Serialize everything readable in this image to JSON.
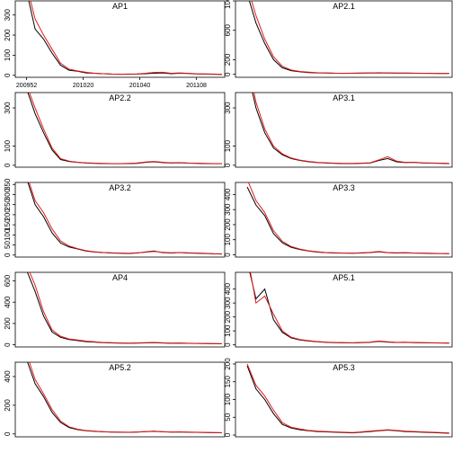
{
  "chart_data": [
    {
      "type": "line",
      "title": "AP1",
      "x": [
        0,
        3,
        6,
        9,
        12,
        15,
        18,
        21,
        24,
        27,
        30,
        33,
        36,
        39,
        42,
        45,
        48,
        51,
        54,
        57,
        60,
        63,
        66,
        69
      ],
      "xlim": [
        -4,
        70
      ],
      "xticks": [
        {
          "value": 0,
          "label": "200952"
        },
        {
          "value": 20,
          "label": "201020"
        },
        {
          "value": 40,
          "label": "201040"
        },
        {
          "value": 60,
          "label": "201108"
        }
      ],
      "ylim": [
        -10,
        370
      ],
      "yticks": [
        0,
        100,
        200,
        300
      ],
      "series": [
        {
          "color": "#000000",
          "values": [
            420,
            230,
            180,
            110,
            50,
            25,
            20,
            12,
            10,
            8,
            6,
            5,
            5,
            6,
            8,
            10,
            12,
            8,
            10,
            9,
            7,
            6,
            5,
            4
          ]
        },
        {
          "color": "#e41a1c",
          "values": [
            450,
            280,
            200,
            130,
            60,
            30,
            22,
            15,
            10,
            8,
            6,
            5,
            6,
            7,
            10,
            14,
            15,
            10,
            12,
            10,
            8,
            7,
            6,
            5
          ]
        }
      ]
    },
    {
      "type": "line",
      "title": "AP2.1",
      "x": [
        0,
        3,
        6,
        9,
        12,
        15,
        18,
        21,
        24,
        27,
        30,
        33,
        36,
        39,
        42,
        45,
        48,
        51,
        54,
        57,
        60,
        63,
        66,
        69
      ],
      "xlim": [
        -4,
        70
      ],
      "ylim": [
        -40,
        1000
      ],
      "yticks": [
        0,
        200,
        600,
        1000
      ],
      "series": [
        {
          "color": "#000000",
          "values": [
            1100,
            700,
            420,
            200,
            90,
            50,
            35,
            25,
            20,
            18,
            15,
            14,
            15,
            16,
            18,
            20,
            18,
            16,
            17,
            15,
            14,
            13,
            12,
            12
          ]
        },
        {
          "color": "#e41a1c",
          "values": [
            1200,
            800,
            480,
            240,
            110,
            60,
            40,
            30,
            22,
            20,
            16,
            15,
            16,
            18,
            20,
            22,
            20,
            18,
            18,
            16,
            15,
            14,
            13,
            13
          ]
        }
      ]
    },
    {
      "type": "line",
      "title": "AP2.2",
      "x": [
        0,
        3,
        6,
        9,
        12,
        15,
        18,
        21,
        24,
        27,
        30,
        33,
        36,
        39,
        42,
        45,
        48,
        51,
        54,
        57,
        60,
        63,
        66,
        69
      ],
      "xlim": [
        -4,
        70
      ],
      "ylim": [
        -10,
        380
      ],
      "yticks": [
        0,
        100,
        300
      ],
      "series": [
        {
          "color": "#000000",
          "values": [
            400,
            270,
            170,
            80,
            30,
            20,
            15,
            12,
            10,
            9,
            8,
            8,
            9,
            10,
            15,
            18,
            14,
            12,
            13,
            11,
            10,
            9,
            8,
            8
          ]
        },
        {
          "color": "#e41a1c",
          "values": [
            420,
            300,
            190,
            90,
            35,
            22,
            16,
            13,
            11,
            10,
            9,
            9,
            10,
            12,
            17,
            20,
            16,
            13,
            14,
            12,
            11,
            10,
            9,
            9
          ]
        }
      ]
    },
    {
      "type": "line",
      "title": "AP3.1",
      "x": [
        0,
        3,
        6,
        9,
        12,
        15,
        18,
        21,
        24,
        27,
        30,
        33,
        36,
        39,
        42,
        45,
        48,
        51,
        54,
        57,
        60,
        63,
        66,
        69
      ],
      "xlim": [
        -4,
        70
      ],
      "ylim": [
        -10,
        380
      ],
      "yticks": [
        0,
        100,
        300
      ],
      "series": [
        {
          "color": "#000000",
          "values": [
            500,
            300,
            170,
            90,
            55,
            35,
            25,
            18,
            14,
            12,
            10,
            9,
            9,
            10,
            12,
            25,
            35,
            18,
            14,
            15,
            12,
            11,
            10,
            9
          ]
        },
        {
          "color": "#e41a1c",
          "values": [
            550,
            330,
            190,
            100,
            60,
            38,
            27,
            20,
            15,
            13,
            11,
            10,
            10,
            11,
            13,
            28,
            45,
            22,
            15,
            16,
            13,
            12,
            11,
            10
          ]
        }
      ]
    },
    {
      "type": "line",
      "title": "AP3.2",
      "x": [
        0,
        3,
        6,
        9,
        12,
        15,
        18,
        21,
        24,
        27,
        30,
        33,
        36,
        39,
        42,
        45,
        48,
        51,
        54,
        57,
        60,
        63,
        66,
        69
      ],
      "xlim": [
        -4,
        70
      ],
      "ylim": [
        -10,
        360
      ],
      "yticks": [
        0,
        50,
        100,
        150,
        200,
        250,
        300,
        350
      ],
      "series": [
        {
          "color": "#000000",
          "values": [
            380,
            250,
            190,
            110,
            60,
            40,
            30,
            20,
            15,
            12,
            10,
            9,
            8,
            10,
            15,
            20,
            12,
            10,
            12,
            10,
            9,
            8,
            6,
            5
          ]
        },
        {
          "color": "#e41a1c",
          "values": [
            400,
            270,
            210,
            130,
            70,
            45,
            32,
            22,
            16,
            13,
            11,
            10,
            9,
            11,
            14,
            18,
            14,
            11,
            13,
            11,
            10,
            9,
            7,
            6
          ]
        }
      ]
    },
    {
      "type": "line",
      "title": "AP3.3",
      "x": [
        0,
        3,
        6,
        9,
        12,
        15,
        18,
        21,
        24,
        27,
        30,
        33,
        36,
        39,
        42,
        45,
        48,
        51,
        54,
        57,
        60,
        63,
        66,
        69
      ],
      "xlim": [
        -4,
        70
      ],
      "ylim": [
        -15,
        480
      ],
      "yticks": [
        0,
        100,
        200,
        300,
        400
      ],
      "series": [
        {
          "color": "#000000",
          "values": [
            450,
            330,
            260,
            140,
            80,
            50,
            35,
            25,
            18,
            14,
            12,
            11,
            10,
            12,
            15,
            20,
            14,
            12,
            13,
            11,
            10,
            9,
            8,
            7
          ]
        },
        {
          "color": "#e41a1c",
          "values": [
            500,
            360,
            280,
            160,
            90,
            55,
            38,
            27,
            20,
            15,
            13,
            12,
            11,
            13,
            16,
            22,
            15,
            13,
            14,
            12,
            11,
            10,
            9,
            8
          ]
        }
      ]
    },
    {
      "type": "line",
      "title": "AP4",
      "x": [
        0,
        3,
        6,
        9,
        12,
        15,
        18,
        21,
        24,
        27,
        30,
        33,
        36,
        39,
        42,
        45,
        48,
        51,
        54,
        57,
        60,
        63,
        66,
        69
      ],
      "xlim": [
        -4,
        70
      ],
      "ylim": [
        -20,
        680
      ],
      "yticks": [
        0,
        200,
        400,
        600
      ],
      "series": [
        {
          "color": "#000000",
          "values": [
            700,
            500,
            270,
            120,
            70,
            50,
            40,
            30,
            25,
            20,
            18,
            16,
            15,
            16,
            18,
            20,
            17,
            15,
            16,
            14,
            13,
            12,
            11,
            10
          ]
        },
        {
          "color": "#e41a1c",
          "values": [
            750,
            560,
            310,
            140,
            80,
            55,
            45,
            35,
            28,
            22,
            20,
            18,
            16,
            18,
            20,
            22,
            19,
            16,
            17,
            15,
            14,
            13,
            12,
            11
          ]
        }
      ]
    },
    {
      "type": "line",
      "title": "AP5.1",
      "x": [
        0,
        3,
        6,
        9,
        12,
        15,
        18,
        21,
        24,
        27,
        30,
        33,
        36,
        39,
        42,
        45,
        48,
        51,
        54,
        57,
        60,
        63,
        66,
        69
      ],
      "xlim": [
        -4,
        70
      ],
      "ylim": [
        -15,
        520
      ],
      "yticks": [
        0,
        100,
        200,
        300,
        400
      ],
      "series": [
        {
          "color": "#000000",
          "values": [
            600,
            330,
            400,
            180,
            90,
            50,
            35,
            28,
            22,
            18,
            16,
            15,
            14,
            16,
            18,
            25,
            20,
            17,
            18,
            16,
            15,
            14,
            13,
            12
          ]
        },
        {
          "color": "#e41a1c",
          "values": [
            650,
            300,
            350,
            220,
            100,
            55,
            38,
            30,
            24,
            20,
            17,
            16,
            15,
            17,
            20,
            28,
            22,
            18,
            19,
            17,
            16,
            15,
            14,
            13
          ]
        }
      ]
    },
    {
      "type": "line",
      "title": "AP5.2",
      "x": [
        0,
        3,
        6,
        9,
        12,
        15,
        18,
        21,
        24,
        27,
        30,
        33,
        36,
        39,
        42,
        45,
        48,
        51,
        54,
        57,
        60,
        63,
        66,
        69
      ],
      "xlim": [
        -4,
        70
      ],
      "ylim": [
        -20,
        500
      ],
      "yticks": [
        0,
        200,
        400
      ],
      "series": [
        {
          "color": "#000000",
          "values": [
            520,
            350,
            260,
            150,
            80,
            45,
            30,
            22,
            18,
            15,
            13,
            12,
            11,
            13,
            16,
            18,
            15,
            13,
            14,
            12,
            11,
            10,
            9,
            8
          ]
        },
        {
          "color": "#e41a1c",
          "values": [
            560,
            380,
            280,
            170,
            90,
            50,
            33,
            24,
            20,
            16,
            14,
            13,
            12,
            14,
            17,
            20,
            16,
            14,
            15,
            13,
            12,
            11,
            10,
            9
          ]
        }
      ]
    },
    {
      "type": "line",
      "title": "AP5.3",
      "x": [
        0,
        3,
        6,
        9,
        12,
        15,
        18,
        21,
        24,
        27,
        30,
        33,
        36,
        39,
        42,
        45,
        48,
        51,
        54,
        57,
        60,
        63,
        66,
        69
      ],
      "xlim": [
        -4,
        70
      ],
      "ylim": [
        -5,
        205
      ],
      "yticks": [
        0,
        50,
        100,
        150,
        200
      ],
      "series": [
        {
          "color": "#000000",
          "values": [
            195,
            130,
            100,
            60,
            30,
            20,
            15,
            12,
            10,
            9,
            8,
            7,
            6,
            8,
            10,
            12,
            14,
            12,
            10,
            9,
            8,
            7,
            6,
            5
          ]
        },
        {
          "color": "#e41a1c",
          "values": [
            200,
            140,
            110,
            70,
            35,
            22,
            17,
            13,
            11,
            10,
            9,
            8,
            7,
            9,
            11,
            13,
            15,
            13,
            11,
            10,
            9,
            8,
            7,
            6
          ]
        }
      ]
    }
  ]
}
